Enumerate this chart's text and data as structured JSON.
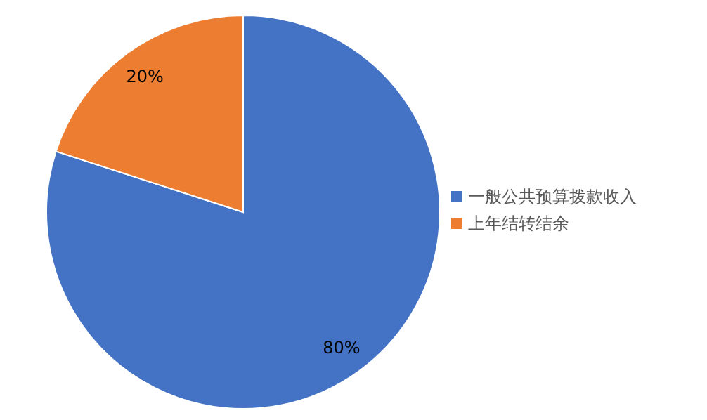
{
  "chart_data": {
    "type": "pie",
    "categories": [
      "一般公共预算拨款收入",
      "上年结转结余"
    ],
    "values": [
      80,
      20
    ],
    "colors": [
      "#4472c4",
      "#ed7d31"
    ],
    "value_labels": [
      "80%",
      "20%"
    ],
    "legend": "right"
  }
}
